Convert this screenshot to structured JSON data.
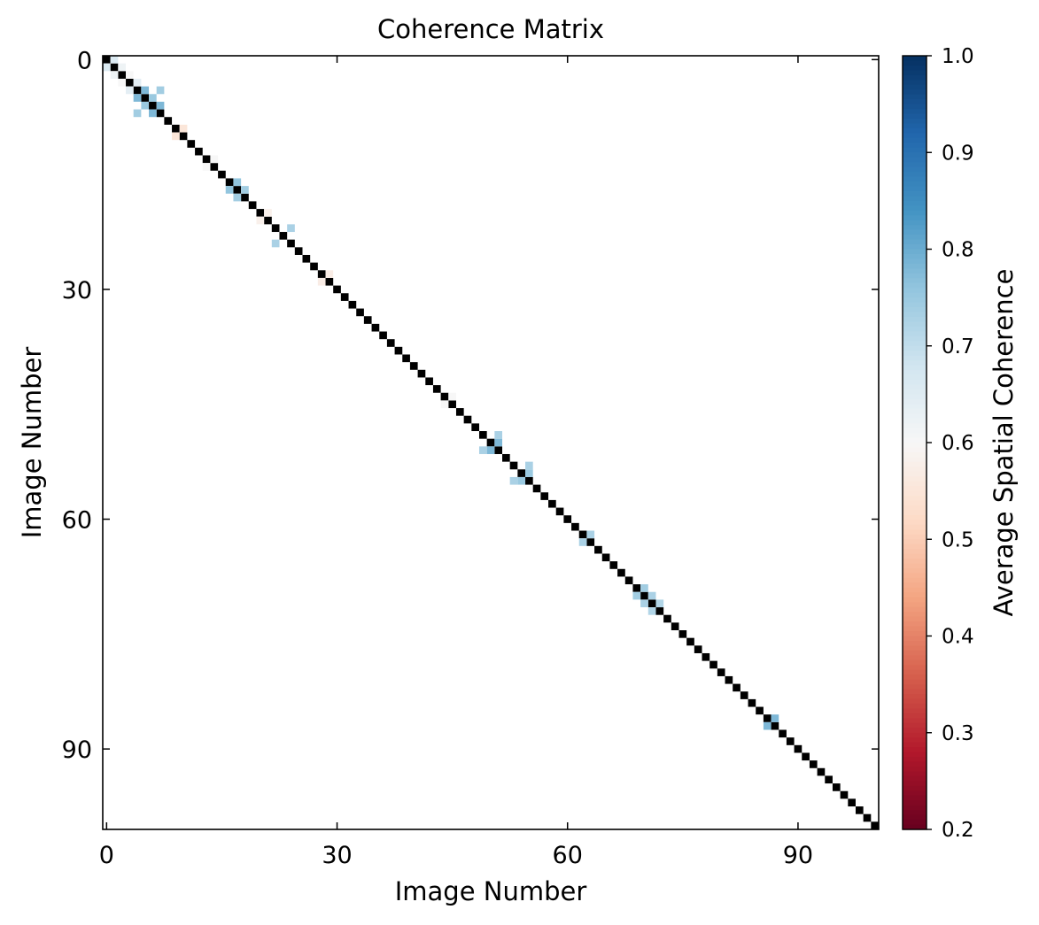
{
  "chart_data": {
    "type": "heatmap",
    "title": "Coherence Matrix",
    "xlabel": "Image Number",
    "ylabel": "Image Number",
    "n_images": 101,
    "xlim": [
      -0.5,
      100.5
    ],
    "ylim": [
      -0.5,
      100.5
    ],
    "x_ticks": [
      "0",
      "30",
      "60",
      "90"
    ],
    "y_ticks": [
      "0",
      "30",
      "60",
      "90"
    ],
    "y_axis_inverted": true,
    "diagonal_value": 1.0,
    "colorbar": {
      "label": "Average Spatial Coherence",
      "vmin": 0.2,
      "vmax": 1.0,
      "ticks": [
        "0.2",
        "0.3",
        "0.4",
        "0.5",
        "0.6",
        "0.7",
        "0.8",
        "0.9",
        "1.0"
      ],
      "colormap": "RdBu",
      "threshold_mask_below": 0.5,
      "highlight_band_start": 0.7
    },
    "off_diagonal_values_sample": [
      [
        0,
        1,
        0.66
      ],
      [
        1,
        2,
        0.62
      ],
      [
        2,
        3,
        0.6
      ],
      [
        3,
        4,
        0.64
      ],
      [
        4,
        5,
        0.78
      ],
      [
        5,
        6,
        0.75
      ],
      [
        6,
        7,
        0.78
      ],
      [
        4,
        7,
        0.74
      ],
      [
        16,
        17,
        0.76
      ],
      [
        17,
        18,
        0.74
      ],
      [
        22,
        24,
        0.73
      ],
      [
        50,
        51,
        0.78
      ],
      [
        49,
        51,
        0.73
      ],
      [
        54,
        55,
        0.75
      ],
      [
        53,
        55,
        0.73
      ],
      [
        62,
        63,
        0.73
      ],
      [
        69,
        70,
        0.74
      ],
      [
        70,
        71,
        0.73
      ],
      [
        71,
        72,
        0.72
      ],
      [
        86,
        87,
        0.78
      ],
      [
        9,
        10,
        0.55
      ],
      [
        13,
        14,
        0.6
      ],
      [
        20,
        21,
        0.58
      ],
      [
        28,
        29,
        0.57
      ],
      [
        44,
        45,
        0.6
      ]
    ],
    "grid": false
  }
}
